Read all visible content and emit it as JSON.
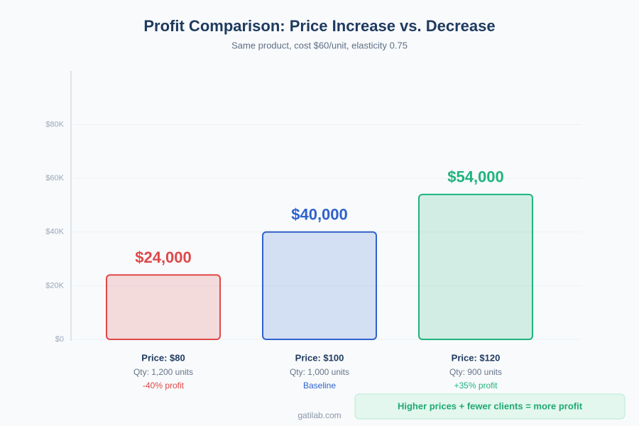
{
  "chart_data": {
    "type": "bar",
    "title": "Profit Comparison: Price Increase vs. Decrease",
    "subtitle": "Same product, cost $60/unit, elasticity 0.75",
    "categories": [
      "Price: $80",
      "Price: $100",
      "Price: $120"
    ],
    "values": [
      24000,
      40000,
      54000
    ],
    "value_labels": [
      "$24,000",
      "$40,000",
      "$54,000"
    ],
    "quantity_labels": [
      "Qty: 1,200 units",
      "Qty: 1,000 units",
      "Qty: 900 units"
    ],
    "change_labels": [
      "-40% profit",
      "Baseline",
      "+35% profit"
    ],
    "colors": [
      "#e04848",
      "#2f62cc",
      "#1fb47c"
    ],
    "ylim": [
      0,
      100000
    ],
    "yticks": [
      {
        "value": 0,
        "label": "$0"
      },
      {
        "value": 20000,
        "label": "$20K"
      },
      {
        "value": 40000,
        "label": "$40K"
      },
      {
        "value": 60000,
        "label": "$60K"
      },
      {
        "value": 80000,
        "label": "$80K"
      }
    ],
    "grid": true,
    "callout": "Higher prices + fewer clients = more profit",
    "footer": "gatilab.com"
  }
}
